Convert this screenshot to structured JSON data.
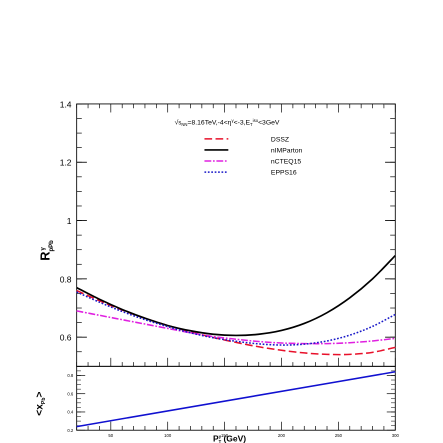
{
  "chart_data": [
    {
      "type": "line",
      "panel": "top",
      "ylabel_main": "R",
      "ylabel_sup": "γ",
      "ylabel_sub": "pPb",
      "xlim": [
        20,
        300
      ],
      "ylim": [
        0.5,
        1.4
      ],
      "yticks": [
        "0.6",
        "0.8",
        "1",
        "1.2",
        "1.4"
      ],
      "header": "√s_NN=8.16TeV,-4<η^γ<-3,E_T^iso<3GeV",
      "header_parts": {
        "root": "√",
        "s": "s",
        "sub": "NN",
        "mid": "=8.16TeV,-4<η",
        "eta_sup": "γ",
        "range": "<-3,E",
        "iso": "iso",
        "T": "T",
        "end": "<3GeV"
      },
      "legend_position": "top-right",
      "series": [
        {
          "name": "DSSZ",
          "color": "#e8102a",
          "dash": "9,4",
          "x": [
            20,
            40,
            60,
            80,
            100,
            120,
            140,
            160,
            180,
            200,
            220,
            240,
            260,
            280,
            300
          ],
          "y": [
            0.76,
            0.725,
            0.693,
            0.665,
            0.64,
            0.618,
            0.599,
            0.582,
            0.567,
            0.555,
            0.546,
            0.541,
            0.541,
            0.548,
            0.565
          ]
        },
        {
          "name": "nIMParton",
          "color": "#000000",
          "dash": "",
          "x": [
            20,
            40,
            60,
            80,
            100,
            120,
            140,
            160,
            180,
            200,
            220,
            240,
            260,
            280,
            300
          ],
          "y": [
            0.77,
            0.73,
            0.695,
            0.665,
            0.64,
            0.622,
            0.61,
            0.606,
            0.61,
            0.623,
            0.647,
            0.684,
            0.735,
            0.8,
            0.88
          ]
        },
        {
          "name": "nCTEQ15",
          "color": "#e020e0",
          "dash": "8,2,2,2",
          "x": [
            20,
            40,
            60,
            80,
            100,
            120,
            140,
            160,
            180,
            200,
            220,
            240,
            260,
            280,
            300
          ],
          "y": [
            0.69,
            0.675,
            0.66,
            0.645,
            0.63,
            0.615,
            0.602,
            0.593,
            0.585,
            0.58,
            0.578,
            0.578,
            0.581,
            0.587,
            0.596
          ]
        },
        {
          "name": "EPPS16",
          "color": "#1818c8",
          "dash": "2,2",
          "x": [
            20,
            40,
            60,
            80,
            100,
            120,
            140,
            160,
            180,
            200,
            220,
            240,
            260,
            280,
            300
          ],
          "y": [
            0.755,
            0.72,
            0.688,
            0.66,
            0.636,
            0.615,
            0.598,
            0.586,
            0.577,
            0.573,
            0.576,
            0.587,
            0.607,
            0.637,
            0.678
          ]
        }
      ]
    },
    {
      "type": "line",
      "panel": "bottom",
      "ylabel_main": "<x",
      "ylabel_sub": "Pb",
      "ylabel_end": ">",
      "xlabel_main": "P",
      "xlabel_sub": "T",
      "xlabel_sup": "γ",
      "xlabel_unit": " (GeV)",
      "xlim": [
        20,
        300
      ],
      "ylim": [
        0.2,
        0.9
      ],
      "xticks": [
        {
          "label": "50",
          "value": 50
        },
        {
          "label": "100",
          "value": 100
        },
        {
          "label": "150",
          "value": 150
        },
        {
          "label": "200",
          "value": 200
        },
        {
          "label": "250",
          "value": 250
        },
        {
          "label": "300",
          "value": 300
        }
      ],
      "yticks": [
        {
          "label": "0.2",
          "value": 0.2
        },
        {
          "label": "0.4",
          "value": 0.4
        },
        {
          "label": "0.6",
          "value": 0.6
        },
        {
          "label": "0.8",
          "value": 0.8
        }
      ],
      "series": [
        {
          "color": "#1010d0",
          "x": [
            20,
            300
          ],
          "y": [
            0.24,
            0.84
          ]
        }
      ]
    }
  ]
}
